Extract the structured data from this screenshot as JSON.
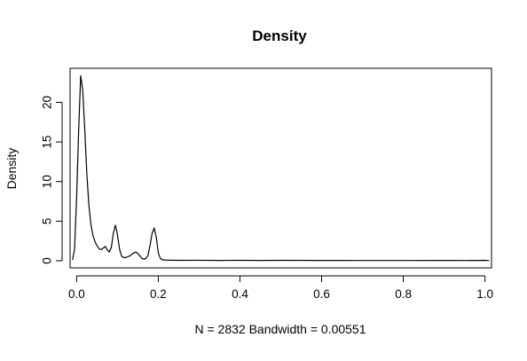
{
  "chart_data": {
    "type": "line",
    "title": "Density",
    "xlabel": "N = 2832   Bandwidth = 0.00551",
    "ylabel": "Density",
    "xlim": [
      -0.016,
      1.016
    ],
    "ylim": [
      -0.9,
      24.3
    ],
    "grid": false,
    "legend": "none",
    "x_ticks": [
      "0.0",
      "0.2",
      "0.4",
      "0.6",
      "0.8",
      "1.0"
    ],
    "y_ticks": [
      "0",
      "5",
      "10",
      "15",
      "20"
    ],
    "x_tick_values": [
      0.0,
      0.2,
      0.4,
      0.6,
      0.8,
      1.0
    ],
    "y_tick_values": [
      0,
      5,
      10,
      15,
      20
    ],
    "series": [
      {
        "x": [
          -0.01,
          -0.005,
          0.0,
          0.005,
          0.01,
          0.015,
          0.02,
          0.025,
          0.03,
          0.035,
          0.04,
          0.045,
          0.05,
          0.055,
          0.06,
          0.065,
          0.07,
          0.075,
          0.08,
          0.085,
          0.09,
          0.095,
          0.1,
          0.105,
          0.11,
          0.115,
          0.12,
          0.125,
          0.13,
          0.135,
          0.14,
          0.145,
          0.15,
          0.155,
          0.16,
          0.165,
          0.17,
          0.175,
          0.18,
          0.185,
          0.19,
          0.195,
          0.2,
          0.205,
          0.21,
          0.22,
          0.25,
          0.3,
          0.35,
          0.4,
          0.45,
          0.5,
          0.6,
          0.7,
          0.8,
          0.9,
          0.95,
          1.0,
          1.01
        ],
        "y": [
          0.1,
          1.5,
          8.0,
          16.5,
          23.4,
          21.5,
          16.5,
          11.0,
          7.0,
          4.6,
          3.2,
          2.4,
          1.9,
          1.5,
          1.4,
          1.6,
          1.8,
          1.4,
          1.1,
          1.7,
          3.5,
          4.5,
          3.3,
          1.5,
          0.6,
          0.4,
          0.4,
          0.5,
          0.6,
          0.8,
          1.0,
          1.1,
          0.9,
          0.6,
          0.3,
          0.2,
          0.3,
          0.7,
          2.0,
          3.5,
          4.1,
          3.0,
          1.0,
          0.3,
          0.12,
          0.08,
          0.05,
          0.06,
          0.04,
          0.05,
          0.04,
          0.05,
          0.04,
          0.03,
          0.03,
          0.04,
          0.03,
          0.05,
          0.02
        ]
      }
    ]
  }
}
